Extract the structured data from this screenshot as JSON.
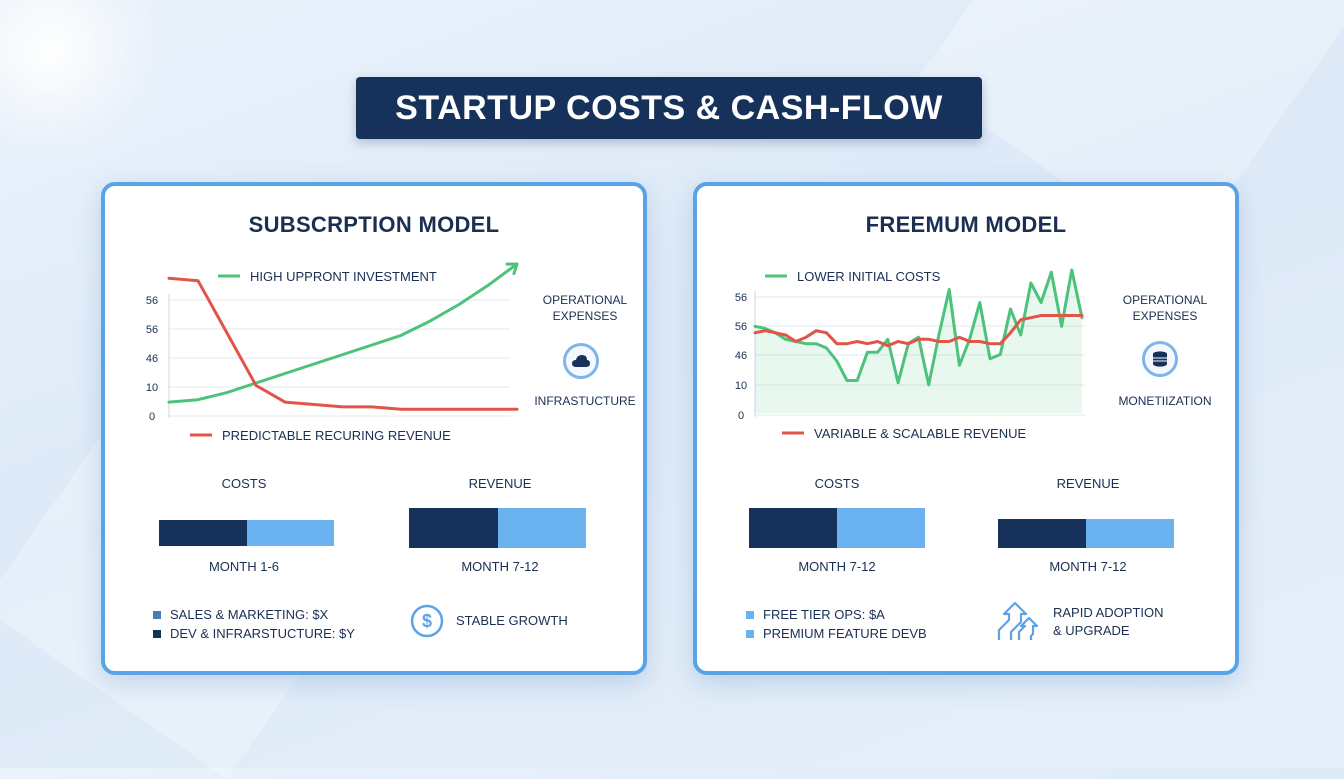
{
  "title": "STARTUP COSTS & CASH-FLOW",
  "colors": {
    "navy": "#17325a",
    "light_blue": "#6bb3f0",
    "red": "#e05548",
    "green": "#4cc27a",
    "border": "#5aa3e6"
  },
  "chart_data": [
    {
      "type": "line",
      "title": "SUBSCRPTION MODEL",
      "y_tick_labels": [
        "56",
        "56",
        "46",
        "10",
        "0"
      ],
      "x": [
        1,
        2,
        3,
        4,
        5,
        6,
        7,
        8,
        9,
        10,
        11,
        12,
        13
      ],
      "series": [
        {
          "name": "HIGH UPPRONT INVESTMENT",
          "color": "#4cc27a",
          "values": [
            5,
            6,
            9,
            13,
            17,
            21,
            25,
            29,
            33,
            39,
            46,
            54,
            63
          ]
        },
        {
          "name": "PREDICTABLE RECURING REVENUE",
          "color": "#e05548",
          "values": [
            57,
            56,
            34,
            12,
            5,
            4,
            3,
            3,
            2,
            2,
            2,
            2,
            2
          ]
        }
      ],
      "ylim": [
        0,
        63
      ]
    },
    {
      "type": "area",
      "title": "FREEMUM MODEL",
      "y_tick_labels": [
        "56",
        "56",
        "46",
        "10",
        "0"
      ],
      "x": [
        1,
        2,
        3,
        4,
        5,
        6,
        7,
        8,
        9,
        10,
        11,
        12,
        13,
        14,
        15,
        16,
        17,
        18,
        19,
        20,
        21,
        22,
        23,
        24,
        25,
        26,
        27,
        28,
        29,
        30,
        31,
        32,
        33
      ],
      "series": [
        {
          "name": "LOWER INITIAL COSTS",
          "color": "#4cc27a",
          "values": [
            40,
            39,
            37,
            34,
            33,
            32,
            32,
            30,
            24,
            15,
            15,
            28,
            28,
            34,
            14,
            32,
            35,
            13,
            36,
            57,
            22,
            34,
            51,
            25,
            27,
            48,
            36,
            60,
            51,
            65,
            40,
            66,
            44
          ]
        },
        {
          "name": "VARIABLE & SCALABLE REVENUE",
          "color": "#e05548",
          "values": [
            37,
            38,
            37,
            36,
            33,
            35,
            38,
            37,
            32,
            32,
            33,
            32,
            33,
            31,
            33,
            32,
            34,
            34,
            33,
            33,
            35,
            33,
            33,
            32,
            32,
            37,
            43,
            44,
            45,
            45,
            45,
            45,
            45
          ]
        }
      ],
      "ylim": [
        0,
        66
      ]
    }
  ],
  "left": {
    "side_top": "OPERATIONAL EXPENSES",
    "side_bottom": "INFRASTUCTURE",
    "costs_label": "COSTS",
    "revenue_label": "REVENUE",
    "costs_caption": "MONTH 1-6",
    "revenue_caption": "MONTH 7-12",
    "costs_bar": {
      "dark_fraction": 0.5
    },
    "revenue_bar": {
      "dark_fraction": 0.5
    },
    "legend": [
      {
        "label": "SALES & MARKETING: $X",
        "color": "#4a7fb5"
      },
      {
        "label": "DEV & INFRARSTUCTURE: $Y",
        "color": "#17325a"
      }
    ],
    "feature": "STABLE GROWTH"
  },
  "right": {
    "side_top": "OPERATIONAL EXPENSES",
    "side_bottom": "MONETIIZATION",
    "costs_label": "COSTS",
    "revenue_label": "REVENUE",
    "costs_caption": "MONTH 7-12",
    "revenue_caption": "MONTH 7-12",
    "costs_bar": {
      "dark_fraction": 0.5
    },
    "revenue_bar": {
      "dark_fraction": 0.5
    },
    "legend": [
      {
        "label": "FREE TIER OPS: $A",
        "color": "#6bb3f0"
      },
      {
        "label": "PREMIUM FEATURE DEVB",
        "color": "#6bb3f0"
      }
    ],
    "feature_line1": "RAPID ADOPTION",
    "feature_line2": "& UPGRADE"
  }
}
